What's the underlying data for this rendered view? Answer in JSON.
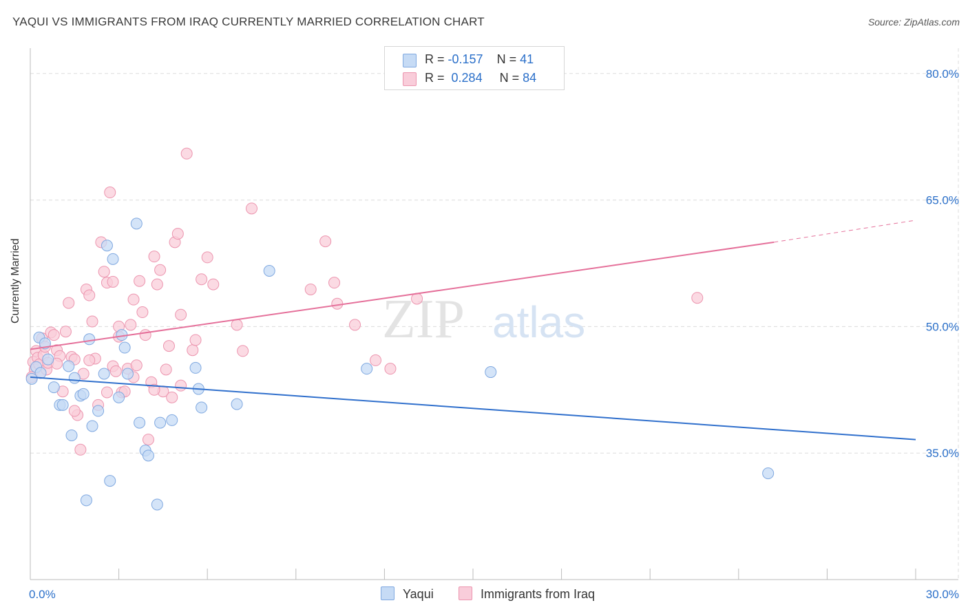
{
  "header": {
    "title": "YAQUI VS IMMIGRANTS FROM IRAQ CURRENTLY MARRIED CORRELATION CHART",
    "source": "Source: ZipAtlas.com"
  },
  "legend_top": {
    "row1": {
      "r_label": "R =",
      "r_value": "-0.157",
      "n_label": "N =",
      "n_value": "41"
    },
    "row2": {
      "r_label": "R =",
      "r_value": "0.284",
      "n_label": "N =",
      "n_value": "84"
    }
  },
  "colors": {
    "yaqui_fill": "#c6dbf5",
    "yaqui_stroke": "#7fa8e0",
    "yaqui_line": "#2f6fcc",
    "iraq_fill": "#f9cdda",
    "iraq_stroke": "#ec94ae",
    "iraq_line": "#e5709a",
    "grid": "#dcdcdc",
    "tick_label": "#2a6fc9"
  },
  "chart_data": {
    "type": "scatter",
    "title": "YAQUI VS IMMIGRANTS FROM IRAQ CURRENTLY MARRIED CORRELATION CHART",
    "xlabel": "",
    "ylabel": "Currently Married",
    "xlim": [
      0,
      30
    ],
    "ylim": [
      20,
      83
    ],
    "x_tick_labels": [
      "0.0%",
      "30.0%"
    ],
    "y_ticks": [
      35,
      50,
      65,
      80
    ],
    "y_tick_labels": [
      "35.0%",
      "50.0%",
      "65.0%",
      "80.0%"
    ],
    "grid": true,
    "legend_placement": "top-center",
    "watermark": "ZIPatlas",
    "series": [
      {
        "name": "Yaqui",
        "points": [
          [
            0.2,
            45.2
          ],
          [
            0.3,
            48.7
          ],
          [
            0.35,
            44.5
          ],
          [
            0.5,
            48.0
          ],
          [
            0.6,
            46.1
          ],
          [
            0.8,
            42.8
          ],
          [
            1.0,
            40.7
          ],
          [
            1.1,
            40.7
          ],
          [
            1.3,
            45.3
          ],
          [
            1.4,
            37.1
          ],
          [
            1.5,
            43.9
          ],
          [
            1.7,
            41.8
          ],
          [
            1.8,
            42.0
          ],
          [
            2.0,
            48.5
          ],
          [
            2.1,
            38.2
          ],
          [
            2.3,
            40.0
          ],
          [
            2.5,
            44.4
          ],
          [
            2.6,
            59.6
          ],
          [
            2.7,
            31.7
          ],
          [
            2.8,
            58.0
          ],
          [
            3.0,
            41.6
          ],
          [
            3.1,
            49.0
          ],
          [
            3.2,
            47.5
          ],
          [
            3.3,
            44.4
          ],
          [
            3.6,
            62.2
          ],
          [
            3.7,
            38.6
          ],
          [
            3.9,
            35.3
          ],
          [
            4.0,
            34.7
          ],
          [
            4.3,
            28.9
          ],
          [
            4.4,
            38.6
          ],
          [
            4.8,
            38.9
          ],
          [
            5.6,
            45.1
          ],
          [
            5.7,
            42.6
          ],
          [
            5.8,
            40.4
          ],
          [
            7.0,
            40.8
          ],
          [
            8.1,
            56.6
          ],
          [
            1.9,
            29.4
          ],
          [
            11.4,
            45.0
          ],
          [
            15.6,
            44.6
          ],
          [
            25.0,
            32.6
          ],
          [
            0.05,
            43.8
          ]
        ]
      },
      {
        "name": "Immigrants from Iraq",
        "points": [
          [
            0.1,
            45.8
          ],
          [
            0.15,
            44.9
          ],
          [
            0.2,
            47.1
          ],
          [
            0.25,
            46.3
          ],
          [
            0.3,
            45.5
          ],
          [
            0.35,
            44.5
          ],
          [
            0.4,
            48.6
          ],
          [
            0.45,
            46.6
          ],
          [
            0.5,
            47.6
          ],
          [
            0.55,
            44.9
          ],
          [
            0.6,
            45.7
          ],
          [
            0.7,
            49.3
          ],
          [
            0.8,
            49.0
          ],
          [
            0.9,
            47.2
          ],
          [
            1.0,
            46.5
          ],
          [
            1.1,
            42.3
          ],
          [
            1.2,
            49.4
          ],
          [
            1.3,
            52.8
          ],
          [
            1.4,
            46.4
          ],
          [
            1.5,
            46.1
          ],
          [
            1.6,
            39.5
          ],
          [
            1.7,
            35.4
          ],
          [
            1.8,
            44.4
          ],
          [
            1.9,
            54.4
          ],
          [
            2.0,
            53.7
          ],
          [
            2.1,
            50.6
          ],
          [
            2.2,
            46.2
          ],
          [
            2.3,
            40.7
          ],
          [
            2.4,
            60.0
          ],
          [
            2.5,
            56.5
          ],
          [
            2.6,
            55.2
          ],
          [
            2.7,
            65.9
          ],
          [
            2.8,
            45.3
          ],
          [
            2.9,
            44.7
          ],
          [
            3.0,
            48.8
          ],
          [
            3.1,
            42.2
          ],
          [
            3.2,
            42.3
          ],
          [
            3.3,
            45.0
          ],
          [
            3.4,
            50.2
          ],
          [
            3.5,
            53.2
          ],
          [
            3.6,
            45.4
          ],
          [
            3.7,
            55.4
          ],
          [
            3.8,
            51.7
          ],
          [
            3.9,
            49.0
          ],
          [
            4.0,
            36.6
          ],
          [
            4.1,
            43.4
          ],
          [
            4.2,
            58.3
          ],
          [
            4.3,
            55.0
          ],
          [
            4.4,
            56.7
          ],
          [
            4.5,
            42.3
          ],
          [
            4.6,
            44.9
          ],
          [
            4.7,
            47.7
          ],
          [
            4.8,
            41.6
          ],
          [
            4.9,
            60.0
          ],
          [
            5.0,
            61.0
          ],
          [
            5.1,
            51.4
          ],
          [
            5.3,
            70.5
          ],
          [
            5.5,
            47.2
          ],
          [
            5.6,
            48.4
          ],
          [
            5.8,
            55.6
          ],
          [
            6.0,
            58.2
          ],
          [
            6.2,
            55.0
          ],
          [
            7.0,
            50.2
          ],
          [
            7.2,
            47.1
          ],
          [
            7.5,
            64.0
          ],
          [
            9.5,
            54.4
          ],
          [
            10.0,
            60.1
          ],
          [
            10.3,
            55.2
          ],
          [
            10.4,
            52.7
          ],
          [
            11.0,
            50.2
          ],
          [
            11.7,
            46.0
          ],
          [
            12.2,
            45.0
          ],
          [
            13.1,
            53.3
          ],
          [
            22.6,
            53.4
          ],
          [
            2.0,
            46.0
          ],
          [
            3.0,
            50.0
          ],
          [
            1.5,
            40.0
          ],
          [
            0.9,
            45.6
          ],
          [
            4.2,
            42.5
          ],
          [
            2.6,
            42.2
          ],
          [
            2.8,
            55.3
          ],
          [
            5.1,
            43.0
          ],
          [
            3.5,
            44.0
          ],
          [
            0.05,
            44.0
          ]
        ]
      }
    ],
    "trendlines": [
      {
        "series": "Yaqui",
        "x": [
          0,
          30
        ],
        "y": [
          44.0,
          36.6
        ],
        "dashed_from": null
      },
      {
        "series": "Immigrants from Iraq",
        "x": [
          0,
          25.2,
          30
        ],
        "y": [
          47.3,
          60.0,
          62.6
        ],
        "dashed_from": 25.2
      }
    ]
  },
  "bottom_legend": {
    "item1": "Yaqui",
    "item2": "Immigrants from Iraq"
  }
}
